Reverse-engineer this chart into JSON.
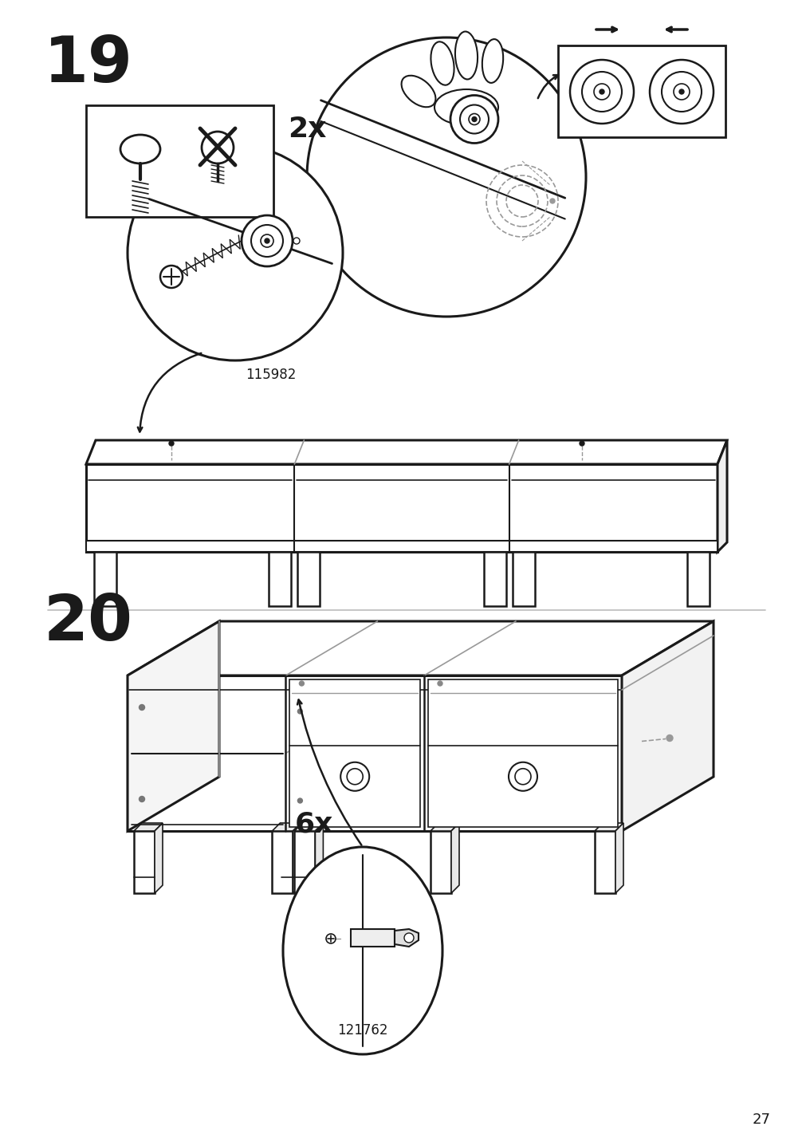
{
  "page_number": "27",
  "step19": "19",
  "step20": "20",
  "label_2x": "2x",
  "label_6x": "6x",
  "part_115982": "115982",
  "part_121762": "121762",
  "bg": "#ffffff",
  "black": "#1a1a1a",
  "gray": "#999999",
  "darkgray": "#555555"
}
